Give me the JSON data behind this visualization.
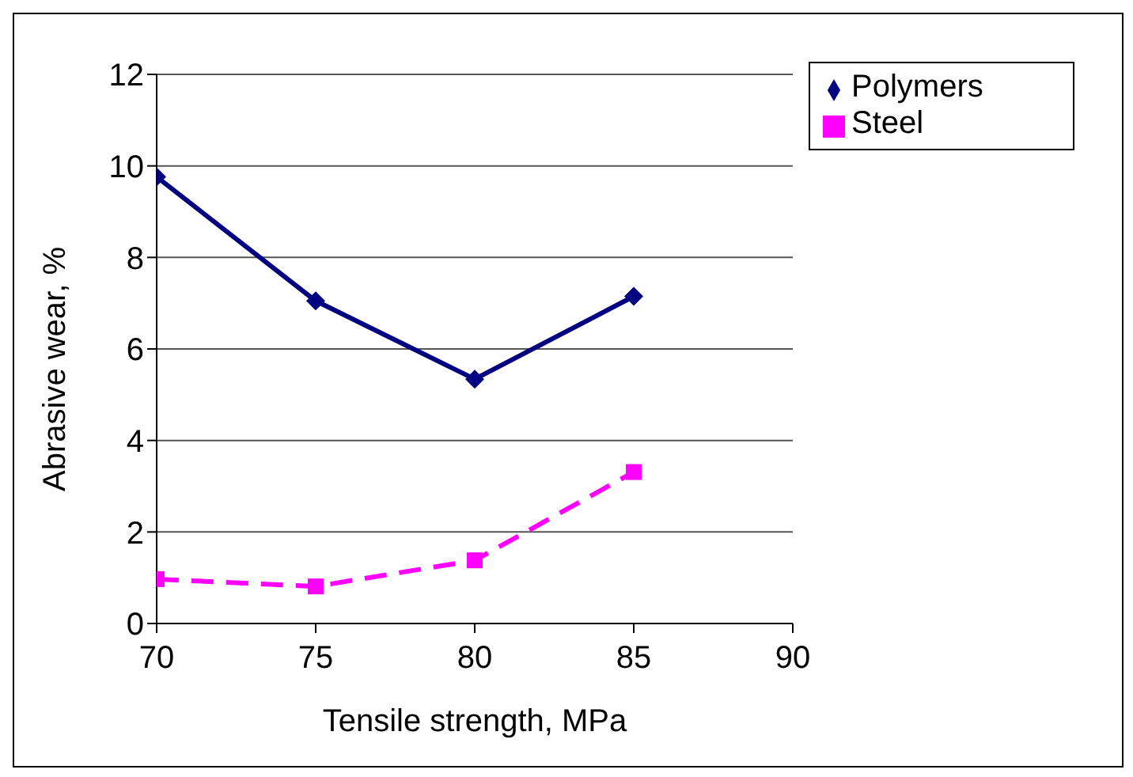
{
  "chart_data": {
    "type": "line",
    "xlabel": "Tensile strength, MPa",
    "ylabel": "Abrasive wear, %",
    "x": [
      70,
      75,
      80,
      85
    ],
    "series": [
      {
        "name": "Polymers",
        "color": "#000080",
        "values": [
          9.76,
          7.05,
          5.34,
          7.15
        ],
        "marker": "diamond",
        "line_style": "solid"
      },
      {
        "name": "Steel",
        "color": "#ff00ff",
        "values": [
          0.97,
          0.81,
          1.38,
          3.31
        ],
        "marker": "square",
        "line_style": "dashed"
      }
    ],
    "xlim": [
      70,
      90
    ],
    "xticks": [
      70,
      75,
      80,
      85,
      90
    ],
    "ylim": [
      0,
      12
    ],
    "yticks": [
      0,
      2,
      4,
      6,
      8,
      10,
      12
    ],
    "grid": "y",
    "legend": "top right"
  }
}
